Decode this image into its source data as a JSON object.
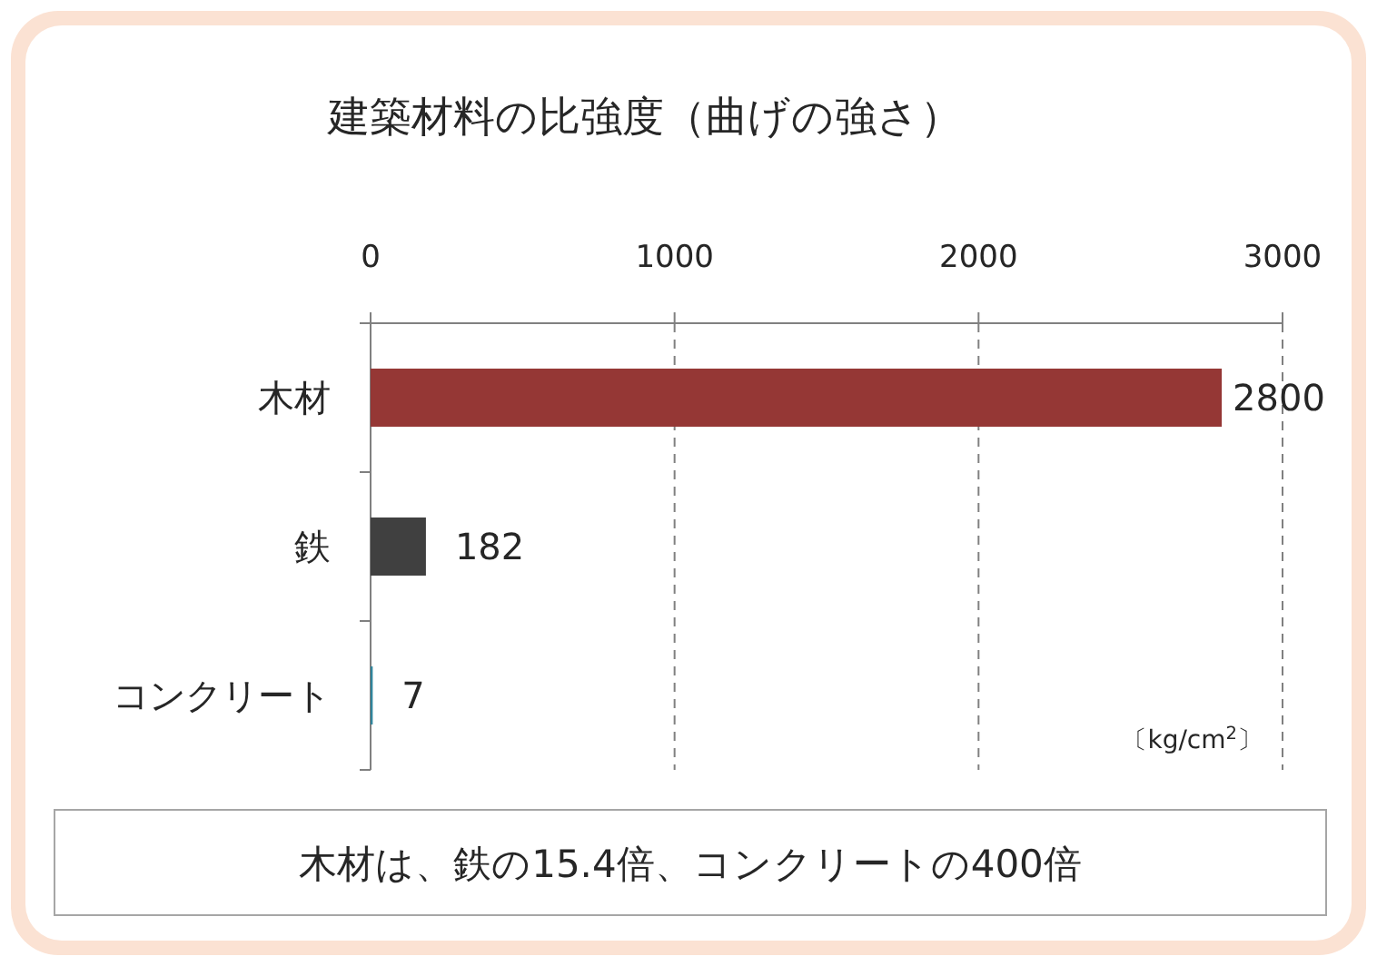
{
  "chart_data": {
    "type": "bar",
    "orientation": "horizontal",
    "title": "建築材料の比強度（曲げの強さ）",
    "categories": [
      "木材",
      "鉄",
      "コンクリート"
    ],
    "values": [
      2800,
      182,
      7
    ],
    "colors": [
      "#953735",
      "#404040",
      "#31859c"
    ],
    "xlim": [
      0,
      3000
    ],
    "xticks": [
      0,
      1000,
      2000,
      3000
    ],
    "grid": "x",
    "data_labels": true,
    "xlabel": "〔kg/cm$^{2}$〕",
    "annotations": [
      "木材は、鉄の15.4倍、コンクリートの400倍"
    ]
  }
}
